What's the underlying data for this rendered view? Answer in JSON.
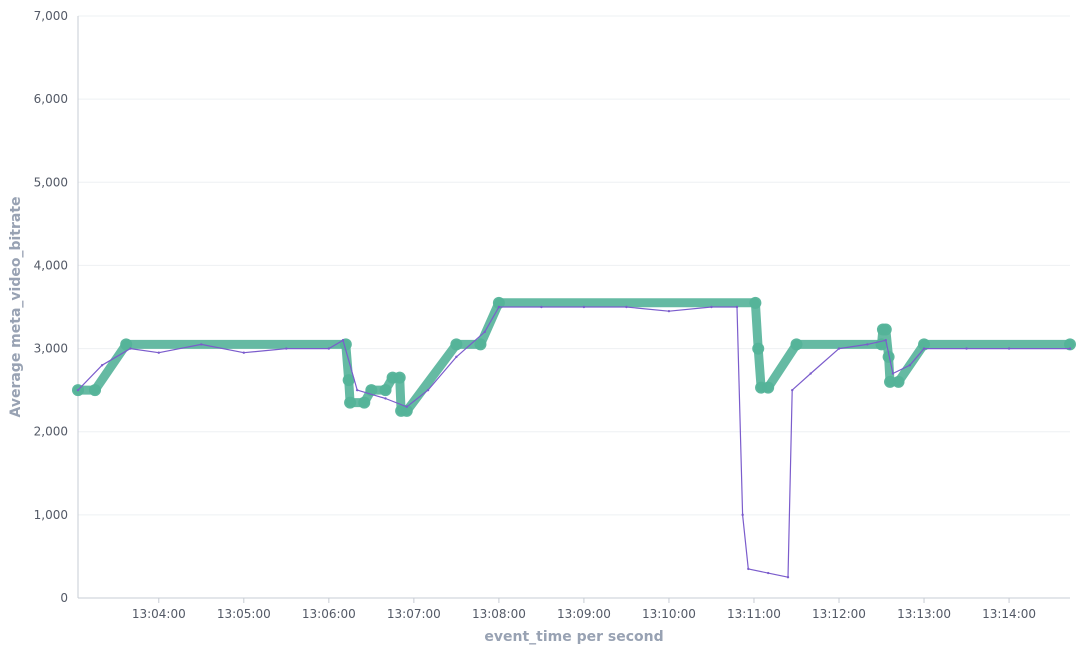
{
  "chart_data": {
    "type": "line",
    "xlabel": "event_time per second",
    "ylabel": "Average meta_video_bitrate",
    "ylim": [
      0,
      7000
    ],
    "xlim": [
      "13:03:03",
      "13:14:43"
    ],
    "grid": "horizontal",
    "legend": "none",
    "y_ticks": [
      {
        "value": 0,
        "label": "0"
      },
      {
        "value": 1000,
        "label": "1,000"
      },
      {
        "value": 2000,
        "label": "2,000"
      },
      {
        "value": 3000,
        "label": "3,000"
      },
      {
        "value": 4000,
        "label": "4,000"
      },
      {
        "value": 5000,
        "label": "5,000"
      },
      {
        "value": 6000,
        "label": "6,000"
      },
      {
        "value": 7000,
        "label": "7,000"
      }
    ],
    "x_ticks": [
      {
        "value": "13:04:00",
        "label": "13:04:00"
      },
      {
        "value": "13:05:00",
        "label": "13:05:00"
      },
      {
        "value": "13:06:00",
        "label": "13:06:00"
      },
      {
        "value": "13:07:00",
        "label": "13:07:00"
      },
      {
        "value": "13:08:00",
        "label": "13:08:00"
      },
      {
        "value": "13:09:00",
        "label": "13:09:00"
      },
      {
        "value": "13:10:00",
        "label": "13:10:00"
      },
      {
        "value": "13:11:00",
        "label": "13:11:00"
      },
      {
        "value": "13:12:00",
        "label": "13:12:00"
      },
      {
        "value": "13:13:00",
        "label": "13:13:00"
      },
      {
        "value": "13:14:00",
        "label": "13:14:00"
      }
    ],
    "series": [
      {
        "color": "#7b5ccc",
        "style": "thin-line",
        "points": [
          {
            "x": "13:03:03",
            "y": 2500
          },
          {
            "x": "13:03:20",
            "y": 2800
          },
          {
            "x": "13:03:40",
            "y": 3000
          },
          {
            "x": "13:04:00",
            "y": 2950
          },
          {
            "x": "13:04:30",
            "y": 3050
          },
          {
            "x": "13:05:00",
            "y": 2950
          },
          {
            "x": "13:05:30",
            "y": 3000
          },
          {
            "x": "13:06:00",
            "y": 3000
          },
          {
            "x": "13:06:10",
            "y": 3100
          },
          {
            "x": "13:06:20",
            "y": 2500
          },
          {
            "x": "13:06:40",
            "y": 2400
          },
          {
            "x": "13:06:55",
            "y": 2300
          },
          {
            "x": "13:07:10",
            "y": 2500
          },
          {
            "x": "13:07:30",
            "y": 2900
          },
          {
            "x": "13:07:50",
            "y": 3200
          },
          {
            "x": "13:08:00",
            "y": 3500
          },
          {
            "x": "13:08:30",
            "y": 3500
          },
          {
            "x": "13:09:00",
            "y": 3500
          },
          {
            "x": "13:09:30",
            "y": 3500
          },
          {
            "x": "13:10:00",
            "y": 3450
          },
          {
            "x": "13:10:30",
            "y": 3500
          },
          {
            "x": "13:10:48",
            "y": 3500
          },
          {
            "x": "13:10:52",
            "y": 1000
          },
          {
            "x": "13:10:56",
            "y": 350
          },
          {
            "x": "13:11:10",
            "y": 300
          },
          {
            "x": "13:11:24",
            "y": 250
          },
          {
            "x": "13:11:27",
            "y": 2500
          },
          {
            "x": "13:11:40",
            "y": 2700
          },
          {
            "x": "13:12:00",
            "y": 3000
          },
          {
            "x": "13:12:20",
            "y": 3050
          },
          {
            "x": "13:12:33",
            "y": 3100
          },
          {
            "x": "13:12:38",
            "y": 2700
          },
          {
            "x": "13:12:50",
            "y": 2800
          },
          {
            "x": "13:13:00",
            "y": 3000
          },
          {
            "x": "13:13:30",
            "y": 3000
          },
          {
            "x": "13:14:00",
            "y": 3000
          },
          {
            "x": "13:14:43",
            "y": 3000
          }
        ]
      },
      {
        "color": "#54b399",
        "style": "thick-line-with-markers",
        "points": [
          {
            "x": "13:03:03",
            "y": 2500
          },
          {
            "x": "13:03:15",
            "y": 2500
          },
          {
            "x": "13:03:37",
            "y": 3050
          },
          {
            "x": "13:06:12",
            "y": 3050
          },
          {
            "x": "13:06:14",
            "y": 2620
          },
          {
            "x": "13:06:15",
            "y": 2350
          },
          {
            "x": "13:06:25",
            "y": 2350
          },
          {
            "x": "13:06:30",
            "y": 2500
          },
          {
            "x": "13:06:40",
            "y": 2500
          },
          {
            "x": "13:06:45",
            "y": 2650
          },
          {
            "x": "13:06:50",
            "y": 2650
          },
          {
            "x": "13:06:51",
            "y": 2250
          },
          {
            "x": "13:06:55",
            "y": 2250
          },
          {
            "x": "13:07:30",
            "y": 3050
          },
          {
            "x": "13:07:47",
            "y": 3050
          },
          {
            "x": "13:08:00",
            "y": 3550
          },
          {
            "x": "13:11:01",
            "y": 3550
          },
          {
            "x": "13:11:03",
            "y": 3000
          },
          {
            "x": "13:11:05",
            "y": 2530
          },
          {
            "x": "13:11:10",
            "y": 2530
          },
          {
            "x": "13:11:30",
            "y": 3050
          },
          {
            "x": "13:12:30",
            "y": 3050
          },
          {
            "x": "13:12:31",
            "y": 3230
          },
          {
            "x": "13:12:33",
            "y": 3230
          },
          {
            "x": "13:12:35",
            "y": 2900
          },
          {
            "x": "13:12:36",
            "y": 2600
          },
          {
            "x": "13:12:42",
            "y": 2600
          },
          {
            "x": "13:13:00",
            "y": 3050
          },
          {
            "x": "13:14:43",
            "y": 3050
          }
        ]
      }
    ]
  }
}
